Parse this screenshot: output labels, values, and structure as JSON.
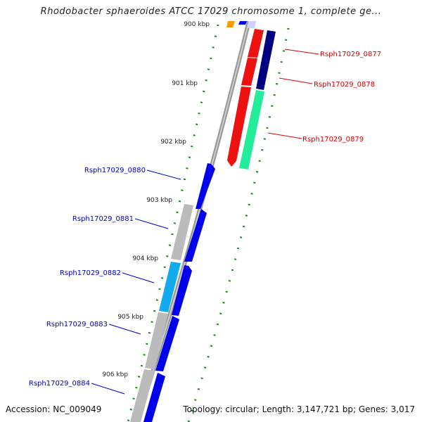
{
  "title": "Rhodobacter sphaeroides ATCC 17029 chromosome 1, complete ge...",
  "footer": {
    "accession": "Accession: NC_009049",
    "summary": "Topology: circular; Length: 3,147,721 bp; Genes: 3,017"
  },
  "ticks": [
    {
      "label": "900 kbp"
    },
    {
      "label": "901 kbp"
    },
    {
      "label": "902 kbp"
    },
    {
      "label": "903 kbp"
    },
    {
      "label": "904 kbp"
    },
    {
      "label": "905 kbp"
    },
    {
      "label": "906 kbp"
    }
  ],
  "genes_right": [
    {
      "label": "Rsph17029_0877",
      "color": "#dd0000"
    },
    {
      "label": "Rsph17029_0878",
      "color": "#dd0000"
    },
    {
      "label": "Rsph17029_0879",
      "color": "#dd0000"
    }
  ],
  "genes_left": [
    {
      "label": "Rsph17029_0880",
      "color": "#0000cc"
    },
    {
      "label": "Rsph17029_0881",
      "color": "#0000cc"
    },
    {
      "label": "Rsph17029_0882",
      "color": "#0000cc"
    },
    {
      "label": "Rsph17029_0883",
      "color": "#0000cc"
    },
    {
      "label": "Rsph17029_0884",
      "color": "#0000cc"
    }
  ],
  "colors": {
    "backbone": "#8a8a8a",
    "tick_dots": "#1a8a1a",
    "forward_gene": "#0000ee",
    "reverse_gene": "#ee0000",
    "dark_blue": "#000080",
    "aquamarine": "#22ee99",
    "cyan": "#11aaee",
    "gray_feature": "#bbbbbb",
    "orange": "#ff9900"
  }
}
